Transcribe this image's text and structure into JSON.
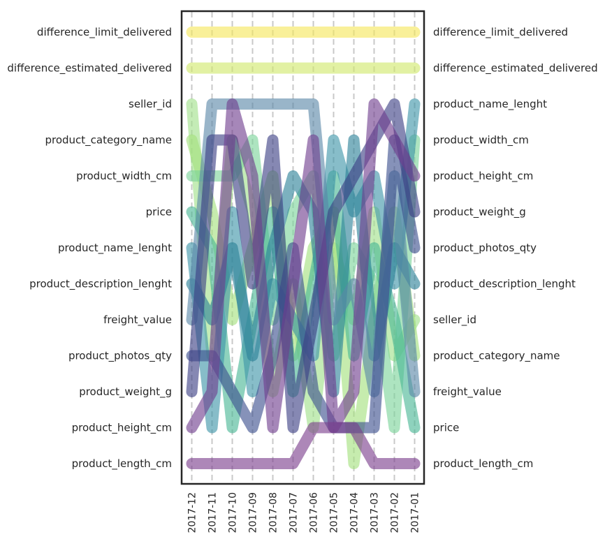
{
  "chart_data": {
    "type": "bump",
    "title": "",
    "xlabel": "",
    "ylabel": "",
    "x_ticks": [
      "2017-12",
      "2017-11",
      "2017-10",
      "2017-09",
      "2017-08",
      "2017-07",
      "2017-06",
      "2017-05",
      "2017-04",
      "2017-03",
      "2017-02",
      "2017-01"
    ],
    "left_labels": [
      "difference_limit_delivered",
      "difference_estimated_delivered",
      "seller_id",
      "product_category_name",
      "product_width_cm",
      "price",
      "product_name_lenght",
      "product_description_lenght",
      "freight_value",
      "product_photos_qty",
      "product_weight_g",
      "product_height_cm",
      "product_length_cm"
    ],
    "right_labels": [
      "difference_limit_delivered",
      "difference_estimated_delivered",
      "product_name_lenght",
      "product_width_cm",
      "product_height_cm",
      "product_weight_g",
      "product_photos_qty",
      "product_description_lenght",
      "seller_id",
      "product_category_name",
      "freight_value",
      "price",
      "product_length_cm"
    ],
    "rank_count": 13,
    "grid": true,
    "series": [
      {
        "name": "difference_limit_delivered",
        "color": "#f6e65a",
        "ranks": [
          1,
          1,
          1,
          1,
          1,
          1,
          1,
          1,
          1,
          1,
          1,
          1
        ]
      },
      {
        "name": "difference_estimated_delivered",
        "color": "#d1e86b",
        "ranks": [
          2,
          2,
          2,
          2,
          2,
          2,
          2,
          2,
          2,
          2,
          2,
          2
        ]
      },
      {
        "name": "seller_id",
        "color": "#9fe089",
        "ranks": [
          3,
          10,
          4,
          6,
          11,
          8,
          12,
          7,
          9,
          6,
          10,
          9
        ]
      },
      {
        "name": "product_category_name",
        "color": "#a3e07c",
        "ranks": [
          4,
          6,
          9,
          7,
          5,
          10,
          7,
          6,
          13,
          9,
          6,
          10
        ]
      },
      {
        "name": "product_width_cm",
        "color": "#7ad49a",
        "ranks": [
          5,
          5,
          5,
          4,
          9,
          6,
          5,
          10,
          7,
          8,
          12,
          4
        ]
      },
      {
        "name": "price",
        "color": "#49b795",
        "ranks": [
          6,
          7,
          12,
          9,
          6,
          11,
          8,
          5,
          10,
          7,
          9,
          12
        ]
      },
      {
        "name": "product_name_lenght",
        "color": "#3e95a8",
        "ranks": [
          7,
          12,
          6,
          11,
          8,
          9,
          10,
          4,
          6,
          5,
          8,
          3
        ]
      },
      {
        "name": "product_description_lenght",
        "color": "#2c8197",
        "ranks": [
          8,
          9,
          7,
          10,
          7,
          5,
          6,
          11,
          4,
          10,
          7,
          8
        ]
      },
      {
        "name": "freight_value",
        "color": "#5a87a8",
        "ranks": [
          9,
          3,
          3,
          3,
          3,
          3,
          3,
          9,
          8,
          11,
          5,
          11
        ]
      },
      {
        "name": "product_photos_qty",
        "color": "#3b4f8e",
        "ranks": [
          10,
          10,
          11,
          12,
          10,
          7,
          11,
          12,
          12,
          12,
          4,
          7
        ]
      },
      {
        "name": "product_weight_g",
        "color": "#3c3f84",
        "ranks": [
          11,
          4,
          4,
          8,
          4,
          12,
          9,
          6,
          5,
          4,
          3,
          6
        ]
      },
      {
        "name": "product_height_cm",
        "color": "#6f3e8e",
        "ranks": [
          12,
          11,
          3,
          5,
          12,
          8,
          4,
          12,
          11,
          3,
          4,
          5
        ]
      },
      {
        "name": "product_length_cm",
        "color": "#7b3e8d",
        "ranks": [
          13,
          13,
          13,
          13,
          13,
          13,
          12,
          12,
          12,
          13,
          13,
          13
        ]
      }
    ]
  }
}
